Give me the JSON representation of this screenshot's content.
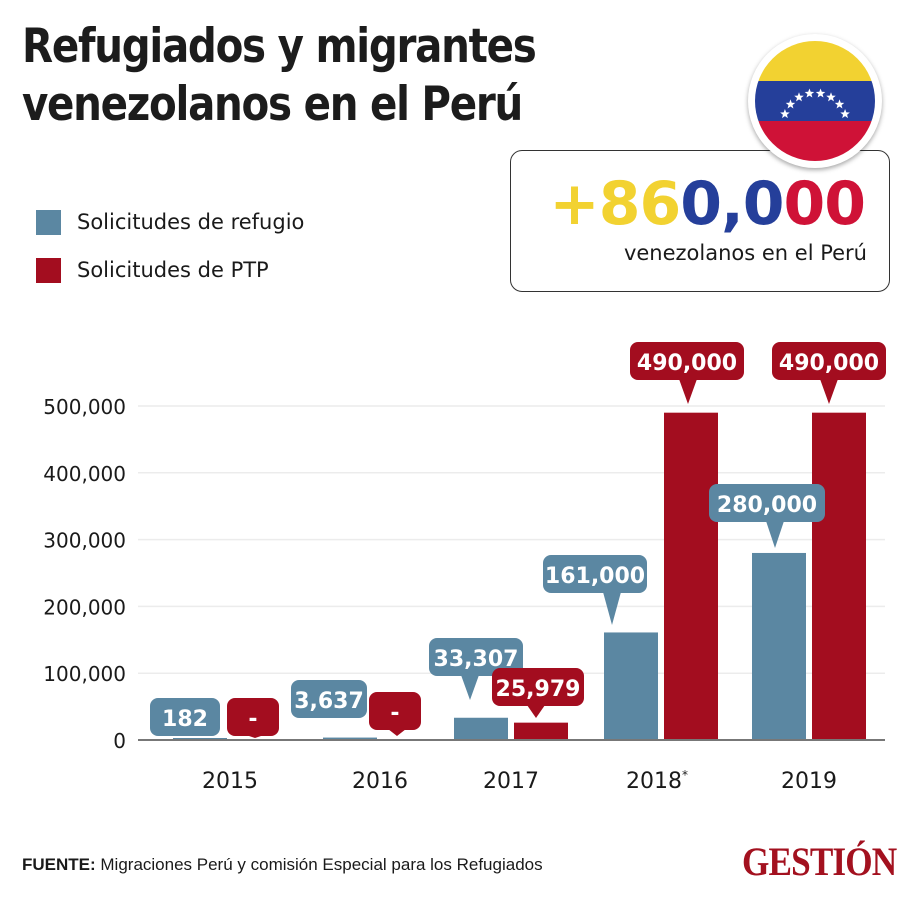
{
  "header": {
    "title_line1": "Refugiados y migrantes",
    "title_line2": "venezolanos en el Perú"
  },
  "flag": {
    "icon": "venezuela-flag-icon",
    "colors": {
      "yellow": "#f2d231",
      "blue": "#253f9a",
      "red": "#cf1237",
      "star": "#ffffff"
    },
    "star_count": 8
  },
  "highlight": {
    "parts": [
      {
        "text": "+86",
        "color": "#f2d231"
      },
      {
        "text": "0,0",
        "color": "#253f9a"
      },
      {
        "text": "00",
        "color": "#cf1237"
      }
    ],
    "value": "+860,000",
    "label": "venezolanos en el Perú"
  },
  "colors": {
    "refugio": "#5b87a2",
    "ptp": "#a30d1f",
    "grid": "#ececec",
    "axis": "#777777"
  },
  "chart_data": {
    "type": "bar",
    "title": "Refugiados y migrantes venezolanos en el Perú",
    "xlabel": "",
    "ylabel": "",
    "categories": [
      "2015",
      "2016",
      "2017",
      "2018*",
      "2019"
    ],
    "category_labels": [
      {
        "text": "2015",
        "sup": ""
      },
      {
        "text": "2016",
        "sup": ""
      },
      {
        "text": "2017",
        "sup": ""
      },
      {
        "text": "2018",
        "sup": "*"
      },
      {
        "text": "2019",
        "sup": ""
      }
    ],
    "series": [
      {
        "name": "Solicitudes de refugio",
        "color": "#5b87a2",
        "values": [
          182,
          3637,
          33307,
          161000,
          280000
        ],
        "labels": [
          "182",
          "3,637",
          "33,307",
          "161,000",
          "280,000"
        ]
      },
      {
        "name": "Solicitudes de PTP",
        "color": "#a30d1f",
        "values": [
          0,
          0,
          25979,
          490000,
          490000
        ],
        "labels": [
          "-",
          "-",
          "25,979",
          "490,000",
          "490,000"
        ]
      }
    ],
    "yticks": [
      0,
      100000,
      200000,
      300000,
      400000,
      500000
    ],
    "ytick_labels": [
      "0",
      "100,000",
      "200,000",
      "300,000",
      "400,000",
      "500,000"
    ],
    "ylim": [
      0,
      500000
    ],
    "grid": true,
    "legend_position": "top-left"
  },
  "legend": [
    {
      "label": "Solicitudes de refugio",
      "color": "#5b87a2"
    },
    {
      "label": "Solicitudes de PTP",
      "color": "#a30d1f"
    }
  ],
  "footer": {
    "source_label": "FUENTE:",
    "source_text": " Migraciones Perú y comisión Especial para los Refugiados",
    "logo": "GESTIÓN"
  }
}
